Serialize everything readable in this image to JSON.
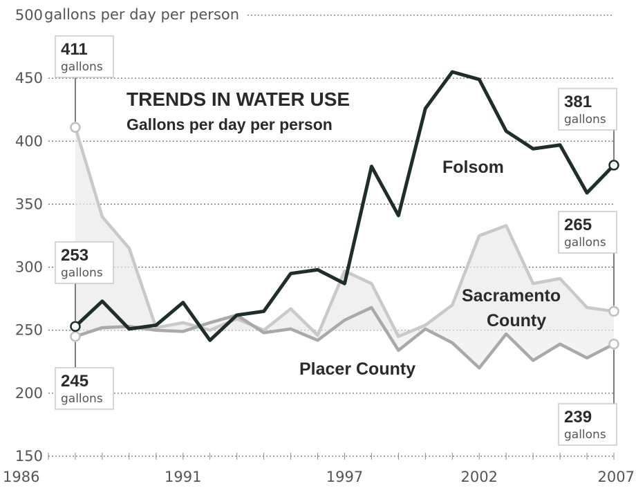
{
  "chart_data": {
    "type": "line",
    "title": "TRENDS IN WATER USE",
    "subtitle": "Gallons per day per person",
    "y_top_label": "gallons per day per person",
    "x_ticks": [
      "1986",
      "1991",
      "1997",
      "2002",
      "2007"
    ],
    "y_ticks": [
      150,
      200,
      250,
      300,
      350,
      400,
      450,
      500
    ],
    "xlim": [
      1986,
      2007
    ],
    "ylim": [
      150,
      500
    ],
    "grid": true,
    "x": [
      1987,
      1988,
      1989,
      1990,
      1991,
      1992,
      1993,
      1994,
      1995,
      1996,
      1997,
      1998,
      1999,
      2000,
      2001,
      2002,
      2003,
      2004,
      2005,
      2006,
      2007
    ],
    "series": [
      {
        "name": "Folsom",
        "color": "#1f2e2a",
        "values": [
          253,
          273,
          251,
          254,
          272,
          242,
          262,
          265,
          295,
          298,
          287,
          380,
          341,
          426,
          455,
          449,
          408,
          394,
          397,
          359,
          381
        ]
      },
      {
        "name": "Sacramento County",
        "color": "#c9c9c9",
        "values": [
          411,
          340,
          315,
          252,
          256,
          250,
          259,
          250,
          267,
          246,
          297,
          287,
          245,
          254,
          270,
          325,
          333,
          287,
          291,
          268,
          265
        ]
      },
      {
        "name": "Placer County",
        "color": "#a9a9a9",
        "values": [
          245,
          252,
          253,
          250,
          249,
          256,
          262,
          248,
          251,
          242,
          258,
          268,
          234,
          251,
          240,
          220,
          247,
          226,
          239,
          228,
          239
        ]
      }
    ],
    "callouts": [
      {
        "id": "sac-start",
        "value": "411",
        "unit": "gallons"
      },
      {
        "id": "folsom-start",
        "value": "253",
        "unit": "gallons"
      },
      {
        "id": "placer-start",
        "value": "245",
        "unit": "gallons"
      },
      {
        "id": "folsom-end",
        "value": "381",
        "unit": "gallons"
      },
      {
        "id": "sac-end",
        "value": "265",
        "unit": "gallons"
      },
      {
        "id": "placer-end",
        "value": "239",
        "unit": "gallons"
      }
    ]
  }
}
